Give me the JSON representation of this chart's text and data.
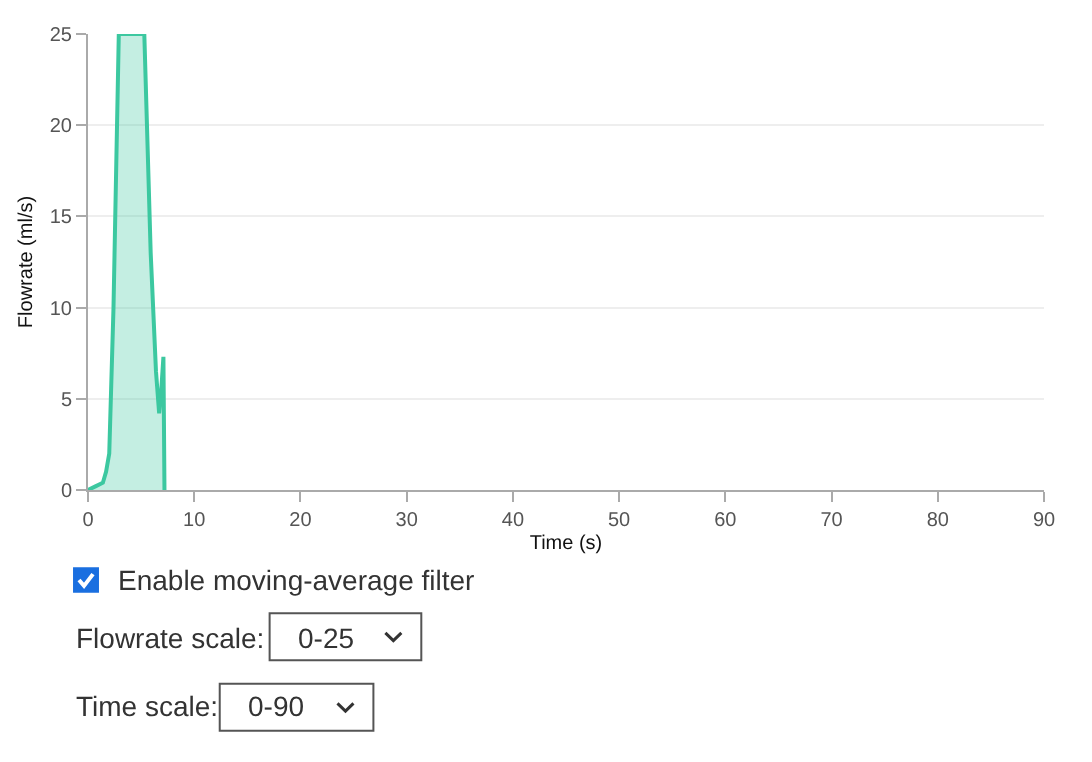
{
  "chart_data": {
    "type": "area",
    "xlabel": "Time (s)",
    "ylabel": "Flowrate (ml/s)",
    "x": [
      0,
      0.7,
      1.4,
      1.7,
      2.0,
      2.4,
      2.9,
      5.3,
      5.9,
      6.4,
      6.7,
      6.9,
      7.1,
      7.2
    ],
    "series": [
      {
        "color": "#3cc8a0",
        "values": [
          0,
          0.2,
          0.4,
          1.0,
          2.0,
          10.0,
          25,
          25,
          13.0,
          6.5,
          4.2,
          5.5,
          7.3,
          0
        ]
      }
    ],
    "xlim": [
      0,
      90
    ],
    "xticks": [
      0,
      10,
      20,
      30,
      40,
      50,
      60,
      70,
      80,
      90
    ],
    "ylim": [
      0,
      25
    ],
    "yticks": [
      0,
      5,
      10,
      15,
      20,
      25
    ],
    "grid": "y",
    "annotations": [
      "Enable moving-average filter",
      "Flowrate scale:",
      "0-25",
      "Time scale:",
      "0-90"
    ]
  }
}
